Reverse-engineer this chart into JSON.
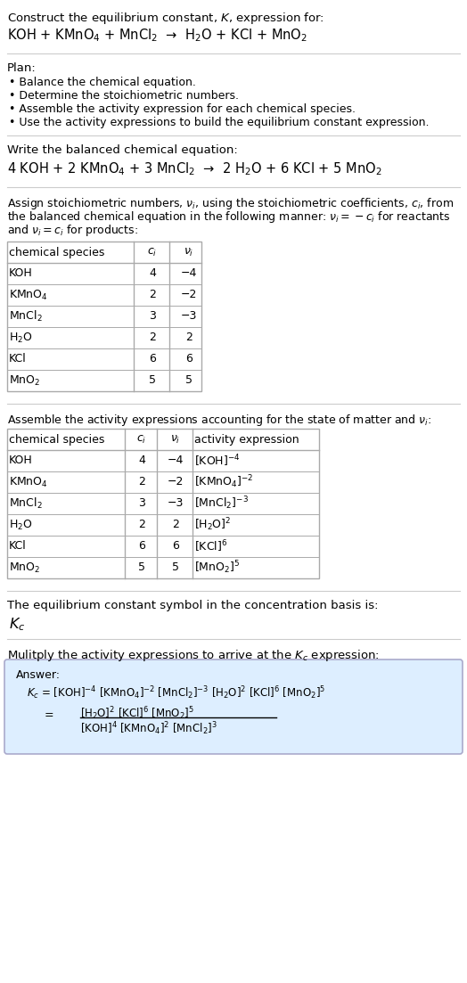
{
  "bg_color": "#ffffff",
  "text_color": "#000000",
  "table_border_color": "#aaaaaa",
  "answer_box_color": "#ddeeff",
  "answer_box_edge": "#aaaacc",
  "font_size": 9.5,
  "small_font": 9.0,
  "title_line1": "Construct the equilibrium constant, $K$, expression for:",
  "title_chem": "KOH + KMnO$_4$ + MnCl$_2$  →  H$_2$O + KCl + MnO$_2$",
  "plan_header": "Plan:",
  "plan_items": [
    "• Balance the chemical equation.",
    "• Determine the stoichiometric numbers.",
    "• Assemble the activity expression for each chemical species.",
    "• Use the activity expressions to build the equilibrium constant expression."
  ],
  "balanced_header": "Write the balanced chemical equation:",
  "balanced_chem": "4 KOH + 2 KMnO$_4$ + 3 MnCl$_2$  →  2 H$_2$O + 6 KCl + 5 MnO$_2$",
  "stoich_header_lines": [
    "Assign stoichiometric numbers, $\\nu_i$, using the stoichiometric coefficients, $c_i$, from",
    "the balanced chemical equation in the following manner: $\\nu_i = -c_i$ for reactants",
    "and $\\nu_i = c_i$ for products:"
  ],
  "table1_cols": [
    "chemical species",
    "$c_i$",
    "$\\nu_i$"
  ],
  "table1_rows": [
    [
      "KOH",
      "4",
      "−4"
    ],
    [
      "KMnO$_4$",
      "2",
      "−2"
    ],
    [
      "MnCl$_2$",
      "3",
      "−3"
    ],
    [
      "H$_2$O",
      "2",
      "2"
    ],
    [
      "KCl",
      "6",
      "6"
    ],
    [
      "MnO$_2$",
      "5",
      "5"
    ]
  ],
  "activity_header": "Assemble the activity expressions accounting for the state of matter and $\\nu_i$:",
  "table2_cols": [
    "chemical species",
    "$c_i$",
    "$\\nu_i$",
    "activity expression"
  ],
  "table2_rows": [
    [
      "KOH",
      "4",
      "−4",
      "[KOH]$^{-4}$"
    ],
    [
      "KMnO$_4$",
      "2",
      "−2",
      "[KMnO$_4$]$^{-2}$"
    ],
    [
      "MnCl$_2$",
      "3",
      "−3",
      "[MnCl$_2$]$^{-3}$"
    ],
    [
      "H$_2$O",
      "2",
      "2",
      "[H$_2$O]$^2$"
    ],
    [
      "KCl",
      "6",
      "6",
      "[KCl]$^6$"
    ],
    [
      "MnO$_2$",
      "5",
      "5",
      "[MnO$_2$]$^5$"
    ]
  ],
  "kc_header": "The equilibrium constant symbol in the concentration basis is:",
  "kc_symbol": "$K_c$",
  "multiply_header": "Mulitply the activity expressions to arrive at the $K_c$ expression:",
  "answer_label": "Answer:",
  "answer_line1": "$K_c$ = [KOH]$^{-4}$ [KMnO$_4$]$^{-2}$ [MnCl$_2$]$^{-3}$ [H$_2$O]$^2$ [KCl]$^6$ [MnO$_2$]$^5$",
  "answer_eq_lhs": "     = ",
  "answer_num": "[H$_2$O]$^2$ [KCl]$^6$ [MnO$_2$]$^5$",
  "answer_den": "[KOH]$^4$ [KMnO$_4$]$^2$ [MnCl$_2$]$^3$"
}
